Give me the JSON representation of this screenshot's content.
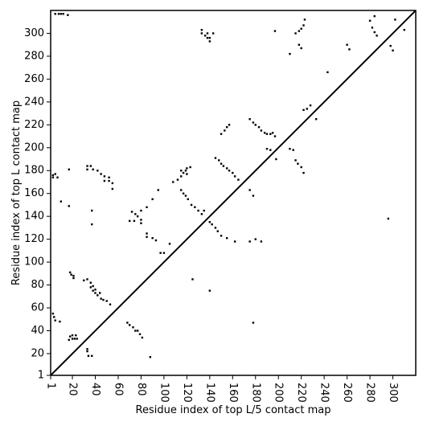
{
  "chart_data": {
    "type": "scatter",
    "x_label": "Residue index of top L/5 contact map",
    "y_label": "Residue index of top L contact map",
    "xlim": [
      1,
      320
    ],
    "ylim": [
      1,
      320
    ],
    "xticks": [
      1,
      20,
      40,
      60,
      80,
      100,
      120,
      140,
      160,
      180,
      200,
      220,
      240,
      260,
      280,
      300
    ],
    "yticks": [
      1,
      20,
      40,
      60,
      80,
      100,
      120,
      140,
      160,
      180,
      200,
      220,
      240,
      260,
      280,
      300
    ],
    "diagonal": true,
    "color": "#000000",
    "x": [
      5,
      8,
      10,
      12,
      16,
      3,
      3,
      5,
      7,
      10,
      17,
      17,
      3,
      4,
      5,
      9,
      18,
      19,
      21,
      21,
      18,
      20,
      22,
      24,
      20,
      23,
      17,
      33,
      33,
      34,
      37,
      33,
      36,
      38,
      40,
      40,
      42,
      45,
      47,
      50,
      53,
      30,
      36,
      38,
      44,
      33,
      33,
      36,
      38,
      42,
      45,
      48,
      52,
      52,
      55,
      55,
      48,
      37,
      37,
      68,
      70,
      73,
      75,
      77,
      79,
      81,
      72,
      75,
      77,
      80,
      80,
      74,
      70,
      85,
      85,
      90,
      93,
      97,
      100,
      105,
      80,
      85,
      90,
      95,
      88,
      108,
      112,
      115,
      117,
      119,
      120,
      123,
      115,
      117,
      119,
      121,
      124,
      127,
      130,
      133,
      135,
      125,
      140,
      115,
      120,
      133,
      133,
      136,
      138,
      140,
      140,
      143,
      138,
      140,
      142,
      145,
      147,
      150,
      155,
      162,
      145,
      148,
      150,
      152,
      155,
      157,
      160,
      162,
      165,
      150,
      153,
      155,
      157,
      175,
      178,
      180,
      183,
      185,
      188,
      190,
      193,
      195,
      197,
      175,
      178,
      175,
      178,
      180,
      185,
      190,
      193,
      198,
      197,
      210,
      210,
      213,
      215,
      217,
      220,
      222,
      215,
      218,
      220,
      222,
      223,
      218,
      220,
      222,
      225,
      228,
      233,
      243,
      260,
      262,
      280,
      282,
      284,
      286,
      284,
      296,
      298,
      300,
      302,
      310
    ],
    "y": [
      317,
      317,
      317,
      317,
      316,
      176,
      174,
      177,
      174,
      153,
      149,
      181,
      55,
      52,
      49,
      48,
      91,
      89,
      86,
      88,
      35,
      33,
      33,
      33,
      36,
      36,
      32,
      24,
      22,
      18,
      18,
      85,
      82,
      79,
      76,
      73,
      71,
      68,
      67,
      66,
      63,
      84,
      78,
      75,
      73,
      184,
      181,
      184,
      181,
      180,
      177,
      175,
      174,
      171,
      169,
      164,
      171,
      145,
      133,
      47,
      45,
      43,
      40,
      40,
      37,
      34,
      144,
      142,
      140,
      137,
      134,
      136,
      136,
      125,
      122,
      121,
      119,
      108,
      108,
      116,
      145,
      148,
      155,
      163,
      17,
      170,
      172,
      175,
      178,
      180,
      182,
      183,
      163,
      160,
      158,
      155,
      150,
      148,
      145,
      142,
      145,
      85,
      75,
      180,
      177,
      303,
      300,
      298,
      296,
      296,
      293,
      300,
      300,
      135,
      133,
      130,
      127,
      123,
      121,
      118,
      191,
      189,
      186,
      184,
      182,
      180,
      178,
      175,
      172,
      212,
      215,
      218,
      220,
      225,
      222,
      220,
      218,
      215,
      213,
      212,
      212,
      213,
      210,
      163,
      158,
      118,
      47,
      120,
      118,
      199,
      198,
      190,
      302,
      282,
      199,
      198,
      189,
      186,
      183,
      178,
      300,
      302,
      304,
      307,
      312,
      290,
      287,
      233,
      234,
      237,
      225,
      266,
      290,
      286,
      311,
      305,
      301,
      298,
      315,
      138,
      289,
      285,
      312,
      303
    ]
  }
}
